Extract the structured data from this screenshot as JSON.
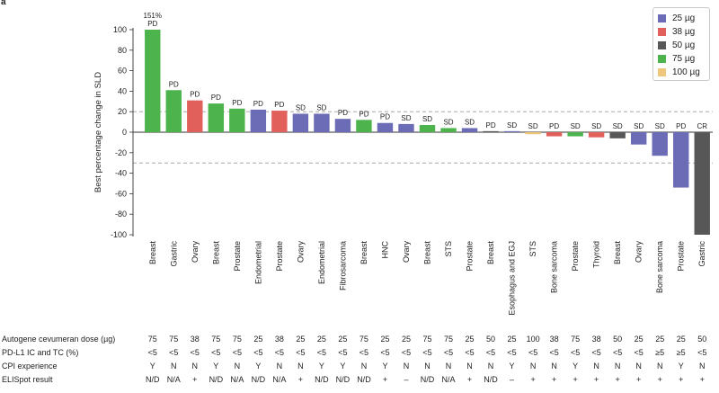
{
  "panel_label": "a",
  "colors": {
    "25": "#6b6bb6",
    "38": "#e2605c",
    "50": "#575757",
    "75": "#4db34d",
    "100": "#efc77a"
  },
  "chart_data": {
    "type": "bar",
    "ylabel": "Best percentage change in SLD",
    "ylim": [
      -100,
      100
    ],
    "yticks": [
      100,
      80,
      60,
      40,
      20,
      0,
      -20,
      -40,
      -60,
      -80,
      -100
    ],
    "reference_lines": [
      20,
      -30
    ],
    "top_annotation": "151%",
    "categories": [
      "Breast",
      "Gastric",
      "Ovary",
      "Breast",
      "Prostate",
      "Endometrial",
      "Prostate",
      "Ovary",
      "Endometrial",
      "Fibrosarcoma",
      "Breast",
      "HNC",
      "Ovary",
      "Breast",
      "STS",
      "Prostate",
      "Breast",
      "Esophagus and EGJ",
      "STS",
      "Bone sarcoma",
      "Prostate",
      "Thyroid",
      "Breast",
      "Ovary",
      "Bone sarcoma",
      "Prostate",
      "Gastric"
    ],
    "values": [
      100,
      41,
      31,
      28,
      23,
      22,
      21,
      18,
      18,
      13,
      12,
      9,
      8,
      7,
      4,
      4,
      1,
      1,
      -2,
      -4,
      -4,
      -5,
      -6,
      -12,
      -23,
      -54,
      -100
    ],
    "doses": [
      75,
      75,
      38,
      75,
      75,
      25,
      38,
      25,
      25,
      25,
      75,
      25,
      25,
      75,
      75,
      25,
      50,
      25,
      100,
      38,
      75,
      38,
      50,
      25,
      25,
      25,
      50
    ],
    "responses": [
      "PD",
      "PD",
      "PD",
      "PD",
      "PD",
      "PD",
      "PD",
      "SD",
      "SD",
      "PD",
      "PD",
      "PD",
      "SD",
      "SD",
      "SD",
      "SD",
      "PD",
      "SD",
      "SD",
      "PD",
      "SD",
      "SD",
      "SD",
      "SD",
      "SD",
      "PD",
      "CR"
    ],
    "legend": [
      {
        "label": "25 µg",
        "dose": "25"
      },
      {
        "label": "38 µg",
        "dose": "38"
      },
      {
        "label": "50 µg",
        "dose": "50"
      },
      {
        "label": "75 µg",
        "dose": "75"
      },
      {
        "label": "100 µg",
        "dose": "100"
      }
    ]
  },
  "table": [
    {
      "label": "Autogene cevumeran dose (µg)",
      "values": [
        "75",
        "75",
        "38",
        "75",
        "75",
        "25",
        "38",
        "25",
        "25",
        "25",
        "75",
        "25",
        "25",
        "75",
        "75",
        "25",
        "50",
        "25",
        "100",
        "38",
        "75",
        "38",
        "50",
        "25",
        "25",
        "25",
        "50"
      ]
    },
    {
      "label": "PD-L1 IC and TC (%)",
      "values": [
        "<5",
        "<5",
        "<5",
        "<5",
        "<5",
        "<5",
        "<5",
        "<5",
        "<5",
        "<5",
        "<5",
        "<5",
        "<5",
        "<5",
        "<5",
        "<5",
        "<5",
        "<5",
        "<5",
        "<5",
        "<5",
        "<5",
        "<5",
        "<5",
        "≥5",
        "≥5",
        "<5"
      ]
    },
    {
      "label": "CPI experience",
      "values": [
        "Y",
        "N",
        "N",
        "Y",
        "N",
        "Y",
        "N",
        "N",
        "Y",
        "Y",
        "N",
        "Y",
        "N",
        "N",
        "N",
        "N",
        "N",
        "Y",
        "N",
        "N",
        "Y",
        "N",
        "N",
        "N",
        "N",
        "Y",
        "N"
      ]
    },
    {
      "label": "ELISpot result",
      "values": [
        "N/D",
        "N/A",
        "+",
        "N/D",
        "N/A",
        "N/D",
        "N/A",
        "+",
        "N/D",
        "N/D",
        "N/D",
        "+",
        "–",
        "N/D",
        "N/A",
        "+",
        "N/D",
        "–",
        "+",
        "+",
        "+",
        "+",
        "+",
        "+",
        "+",
        "+",
        "+"
      ]
    }
  ]
}
